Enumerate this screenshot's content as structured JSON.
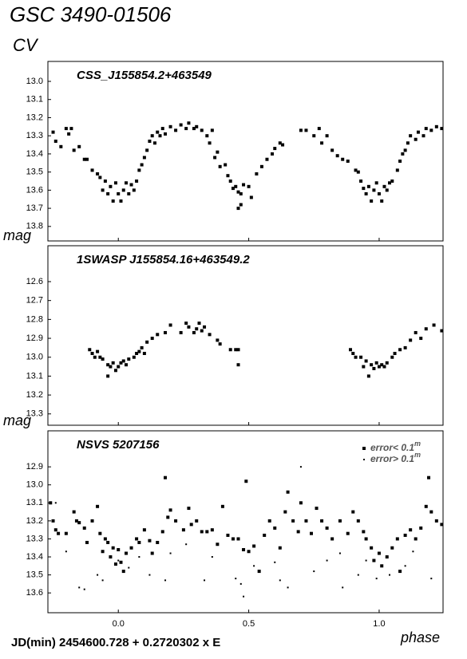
{
  "header": {
    "title": "GSC 3490-01506",
    "subtitle": "CV"
  },
  "footer": {
    "ephemeris": "JD(min) 2454600.728 + 0.2720302 x E"
  },
  "chart_data": [
    {
      "type": "scatter",
      "title": "CSS_J155854.2+463549",
      "color": "#000000",
      "marker": "square",
      "xlim": [
        -0.27,
        1.245
      ],
      "ylim": [
        13.88,
        12.89
      ],
      "yticks": [
        {
          "value": 13.0,
          "label": "13.0"
        },
        13.1,
        13.2,
        13.3,
        13.4,
        13.5,
        13.6,
        13.7,
        13.8
      ],
      "x": [
        -0.25,
        -0.24,
        -0.22,
        -0.2,
        -0.19,
        -0.18,
        -0.17,
        -0.15,
        -0.13,
        -0.12,
        -0.1,
        -0.08,
        -0.07,
        -0.06,
        -0.05,
        -0.04,
        -0.03,
        -0.02,
        -0.01,
        0.0,
        0.01,
        0.02,
        0.03,
        0.04,
        0.05,
        0.06,
        0.07,
        0.08,
        0.09,
        0.1,
        0.11,
        0.12,
        0.13,
        0.14,
        0.15,
        0.16,
        0.17,
        0.18,
        0.2,
        0.22,
        0.24,
        0.26,
        0.27,
        0.29,
        0.3,
        0.32,
        0.34,
        0.35,
        0.36,
        0.37,
        0.38,
        0.39,
        0.41,
        0.42,
        0.43,
        0.44,
        0.45,
        0.46,
        0.47,
        0.48,
        0.5,
        0.46,
        0.47,
        0.51,
        0.53,
        0.55,
        0.57,
        0.59,
        0.6,
        0.62,
        0.63,
        0.7,
        0.72,
        0.75,
        0.77,
        0.78,
        0.8,
        0.82,
        0.84,
        0.86,
        0.88,
        0.91,
        0.92,
        0.93,
        0.94,
        0.95,
        0.96,
        0.97,
        0.98,
        0.99,
        1.0,
        1.01,
        1.02,
        1.03,
        1.04,
        1.05,
        1.07,
        1.08,
        1.09,
        1.1,
        1.11,
        1.12,
        1.14,
        1.15,
        1.17,
        1.18,
        1.2,
        1.22,
        1.24
      ],
      "values": [
        13.28,
        13.33,
        13.36,
        13.26,
        13.29,
        13.26,
        13.38,
        13.36,
        13.43,
        13.43,
        13.49,
        13.51,
        13.53,
        13.6,
        13.55,
        13.62,
        13.58,
        13.66,
        13.56,
        13.62,
        13.66,
        13.6,
        13.56,
        13.62,
        13.57,
        13.6,
        13.55,
        13.49,
        13.46,
        13.42,
        13.38,
        13.33,
        13.3,
        13.34,
        13.28,
        13.3,
        13.26,
        13.29,
        13.25,
        13.27,
        13.24,
        13.26,
        13.23,
        13.26,
        13.25,
        13.27,
        13.3,
        13.34,
        13.27,
        13.42,
        13.39,
        13.47,
        13.46,
        13.52,
        13.55,
        13.59,
        13.58,
        13.61,
        13.62,
        13.57,
        13.58,
        13.7,
        13.68,
        13.64,
        13.51,
        13.47,
        13.43,
        13.4,
        13.37,
        13.34,
        13.35,
        13.27,
        13.27,
        13.3,
        13.26,
        13.34,
        13.3,
        13.38,
        13.41,
        13.43,
        13.44,
        13.49,
        13.5,
        13.55,
        13.59,
        13.62,
        13.58,
        13.66,
        13.6,
        13.56,
        13.62,
        13.66,
        13.58,
        13.6,
        13.56,
        13.55,
        13.49,
        13.44,
        13.4,
        13.38,
        13.34,
        13.3,
        13.32,
        13.28,
        13.3,
        13.26,
        13.27,
        13.25,
        13.26
      ]
    },
    {
      "type": "scatter",
      "title": "1SWASP J155854.16+463549.2",
      "y_label": "mag",
      "color": "#000000",
      "marker": "square",
      "xlim": [
        -0.27,
        1.245
      ],
      "ylim": [
        13.36,
        12.41
      ],
      "yticks": [
        12.6,
        12.7,
        12.8,
        12.9,
        {
          "value": 13.0,
          "label": "13.0"
        },
        13.1,
        13.2,
        13.3
      ],
      "x": [
        -0.11,
        -0.1,
        -0.09,
        -0.08,
        -0.07,
        -0.06,
        -0.04,
        -0.04,
        -0.03,
        -0.02,
        -0.01,
        0.0,
        0.01,
        0.02,
        0.03,
        0.04,
        0.06,
        0.07,
        0.08,
        0.09,
        0.1,
        0.11,
        0.13,
        0.15,
        0.18,
        0.2,
        0.24,
        0.26,
        0.27,
        0.29,
        0.3,
        0.31,
        0.32,
        0.33,
        0.35,
        0.38,
        0.39,
        0.43,
        0.45,
        0.46,
        0.46,
        0.89,
        0.9,
        0.91,
        0.93,
        0.94,
        0.95,
        0.96,
        0.97,
        0.98,
        0.99,
        1.0,
        1.01,
        1.02,
        1.03,
        1.05,
        1.06,
        1.08,
        1.1,
        1.12,
        1.14,
        1.16,
        1.18,
        1.21,
        1.24
      ],
      "values": [
        12.96,
        12.98,
        13.0,
        12.97,
        13.0,
        13.01,
        13.1,
        13.04,
        13.05,
        13.03,
        13.07,
        13.05,
        13.03,
        13.02,
        13.04,
        13.01,
        13.0,
        12.98,
        12.97,
        12.95,
        12.98,
        12.92,
        12.9,
        12.88,
        12.87,
        12.83,
        12.87,
        12.82,
        12.84,
        12.87,
        12.85,
        12.82,
        12.86,
        12.84,
        12.88,
        12.91,
        12.93,
        12.96,
        12.96,
        13.04,
        12.96,
        12.96,
        12.98,
        13.0,
        13.0,
        13.05,
        13.02,
        13.1,
        13.04,
        13.06,
        13.03,
        13.05,
        13.04,
        13.05,
        13.03,
        13.0,
        12.98,
        12.96,
        12.95,
        12.91,
        12.87,
        12.9,
        12.85,
        12.83,
        12.86
      ]
    },
    {
      "type": "scatter",
      "title": "NSVS 5207156",
      "y_label": "mag",
      "x_label": "phase",
      "xlim": [
        -0.27,
        1.245
      ],
      "ylim": [
        13.71,
        12.7
      ],
      "xticks": [
        {
          "value": 0,
          "label": "0.0"
        },
        0.5,
        {
          "value": 1,
          "label": "1.0"
        }
      ],
      "yticks": [
        12.9,
        {
          "value": 13.0,
          "label": "13.0"
        },
        13.1,
        13.2,
        13.3,
        13.4,
        13.5,
        13.6
      ],
      "legend": "top-right",
      "series": [
        {
          "name": "error< 0.1",
          "name_sup": "m",
          "color": "#000000",
          "marker": "square",
          "x": [
            -0.26,
            -0.25,
            -0.24,
            -0.23,
            -0.2,
            -0.17,
            -0.16,
            -0.15,
            -0.13,
            -0.12,
            -0.1,
            -0.08,
            -0.07,
            -0.06,
            -0.05,
            -0.04,
            -0.03,
            -0.02,
            -0.01,
            0.0,
            0.01,
            0.02,
            0.03,
            0.05,
            0.07,
            0.08,
            0.1,
            0.12,
            0.13,
            0.15,
            0.17,
            0.18,
            0.19,
            0.2,
            0.22,
            0.25,
            0.27,
            0.28,
            0.3,
            0.32,
            0.34,
            0.36,
            0.38,
            0.4,
            0.42,
            0.44,
            0.46,
            0.48,
            0.49,
            0.5,
            0.52,
            0.54,
            0.56,
            0.58,
            0.6,
            0.62,
            0.64,
            0.65,
            0.67,
            0.69,
            0.7,
            0.72,
            0.74,
            0.76,
            0.78,
            0.8,
            0.82,
            0.85,
            0.88,
            0.9,
            0.92,
            0.94,
            0.95,
            0.97,
            0.98,
            1.0,
            1.01,
            1.03,
            1.05,
            1.07,
            1.08,
            1.1,
            1.12,
            1.14,
            1.16,
            1.18,
            1.19,
            1.2,
            1.22,
            1.24
          ],
          "values": [
            13.1,
            13.2,
            13.25,
            13.27,
            13.27,
            13.15,
            13.2,
            13.21,
            13.24,
            13.32,
            13.2,
            13.12,
            13.27,
            13.37,
            13.3,
            13.32,
            13.4,
            13.35,
            13.44,
            13.36,
            13.43,
            13.48,
            13.38,
            13.35,
            13.3,
            13.32,
            13.25,
            13.31,
            13.38,
            13.32,
            13.26,
            12.96,
            13.18,
            13.14,
            13.2,
            13.25,
            13.13,
            13.22,
            13.2,
            13.26,
            13.26,
            13.25,
            13.33,
            13.12,
            13.28,
            13.3,
            13.3,
            13.36,
            12.98,
            13.37,
            13.34,
            13.48,
            13.28,
            13.2,
            13.24,
            13.35,
            13.15,
            13.04,
            13.2,
            13.26,
            13.1,
            13.2,
            13.27,
            13.13,
            13.2,
            13.24,
            13.3,
            13.2,
            13.27,
            13.15,
            13.2,
            13.26,
            13.3,
            13.35,
            13.42,
            13.38,
            13.45,
            13.4,
            13.35,
            13.3,
            13.48,
            13.28,
            13.25,
            13.3,
            13.24,
            13.12,
            12.96,
            13.15,
            13.2,
            13.22
          ]
        },
        {
          "name": "error> 0.1",
          "name_sup": "m",
          "color": "#000000",
          "marker": "dot",
          "x": [
            -0.24,
            -0.2,
            -0.15,
            -0.13,
            -0.08,
            -0.06,
            0.0,
            0.04,
            0.08,
            0.12,
            0.18,
            0.2,
            0.26,
            0.33,
            0.36,
            0.45,
            0.47,
            0.48,
            0.52,
            0.6,
            0.62,
            0.65,
            0.7,
            0.75,
            0.8,
            0.85,
            0.86,
            0.92,
            0.95,
            0.99,
            1.04,
            1.1,
            1.13,
            1.2
          ],
          "values": [
            13.1,
            13.37,
            13.57,
            13.58,
            13.5,
            13.53,
            13.42,
            13.46,
            13.4,
            13.5,
            13.53,
            13.38,
            13.33,
            13.53,
            13.4,
            13.52,
            13.55,
            13.62,
            13.45,
            13.43,
            13.53,
            13.57,
            12.9,
            13.48,
            13.42,
            13.38,
            13.57,
            13.5,
            13.42,
            13.52,
            13.5,
            13.45,
            13.37,
            13.52
          ]
        }
      ]
    }
  ]
}
